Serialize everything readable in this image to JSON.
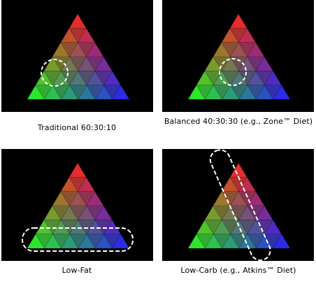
{
  "panels": [
    {
      "id": "traditional",
      "caption": "Traditional 60:30:10",
      "highlight": "circle-lower-left"
    },
    {
      "id": "balanced",
      "caption": "Balanced 40:30:30 (e.g., Zone™ Diet)",
      "highlight": "circle-center"
    },
    {
      "id": "low-fat",
      "caption": "Low-Fat",
      "highlight": "band-bottom-row"
    },
    {
      "id": "low-carb",
      "caption": "Low-Carb (e.g., Atkins™ Diet)",
      "highlight": "band-right-edge"
    }
  ],
  "colors": {
    "panel_background": "#000000",
    "top_vertex": "#ff2020",
    "left_vertex": "#20ff20",
    "right_vertex": "#2020ff",
    "highlight_stroke": "#ffffff"
  }
}
